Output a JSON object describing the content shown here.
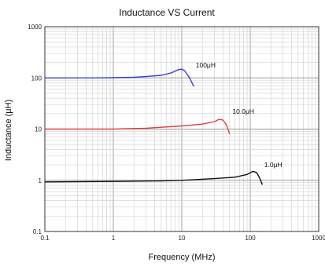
{
  "chart_data": {
    "type": "line",
    "title": "Inductance VS Current",
    "xlabel": "Frequency (MHz)",
    "ylabel": "Inductance (μH)",
    "x_scale": "log",
    "y_scale": "log",
    "xlim": [
      0.1,
      1000
    ],
    "ylim": [
      0.1,
      1000
    ],
    "x_ticks": [
      {
        "value": 0.1,
        "label": "0.1"
      },
      {
        "value": 1,
        "label": "1"
      },
      {
        "value": 10,
        "label": "10"
      },
      {
        "value": 100,
        "label": "100"
      },
      {
        "value": 1000,
        "label": "1000"
      }
    ],
    "y_ticks": [
      {
        "value": 0.1,
        "label": "0.1"
      },
      {
        "value": 1,
        "label": "1"
      },
      {
        "value": 10,
        "label": "10"
      },
      {
        "value": 100,
        "label": "100"
      },
      {
        "value": 1000,
        "label": "1000"
      }
    ],
    "grid": true,
    "series": [
      {
        "color": "#3b3bd6",
        "points": [
          [
            0.1,
            100
          ],
          [
            0.5,
            100
          ],
          [
            1,
            101
          ],
          [
            2,
            103
          ],
          [
            3,
            106
          ],
          [
            5,
            112
          ],
          [
            7,
            125
          ],
          [
            9,
            145
          ],
          [
            10,
            148
          ],
          [
            11,
            138
          ],
          [
            13,
            100
          ],
          [
            15,
            68
          ]
        ]
      },
      {
        "color": "#e04040",
        "points": [
          [
            0.1,
            10
          ],
          [
            1,
            10
          ],
          [
            3,
            10.4
          ],
          [
            10,
            11.5
          ],
          [
            20,
            12.5
          ],
          [
            30,
            14
          ],
          [
            35,
            15.5
          ],
          [
            40,
            15
          ],
          [
            45,
            12
          ],
          [
            50,
            8
          ]
        ]
      },
      {
        "color": "#111111",
        "points": [
          [
            0.1,
            0.93
          ],
          [
            1,
            0.95
          ],
          [
            5,
            0.97
          ],
          [
            10,
            1.0
          ],
          [
            30,
            1.08
          ],
          [
            60,
            1.15
          ],
          [
            90,
            1.3
          ],
          [
            110,
            1.5
          ],
          [
            125,
            1.4
          ],
          [
            140,
            1.05
          ],
          [
            150,
            0.82
          ]
        ]
      }
    ],
    "annotations": [
      {
        "text": "100μH",
        "x": 16,
        "y": 160
      },
      {
        "text": "10.0μH",
        "x": 55,
        "y": 20
      },
      {
        "text": "1.0μH",
        "x": 160,
        "y": 1.8
      }
    ]
  }
}
